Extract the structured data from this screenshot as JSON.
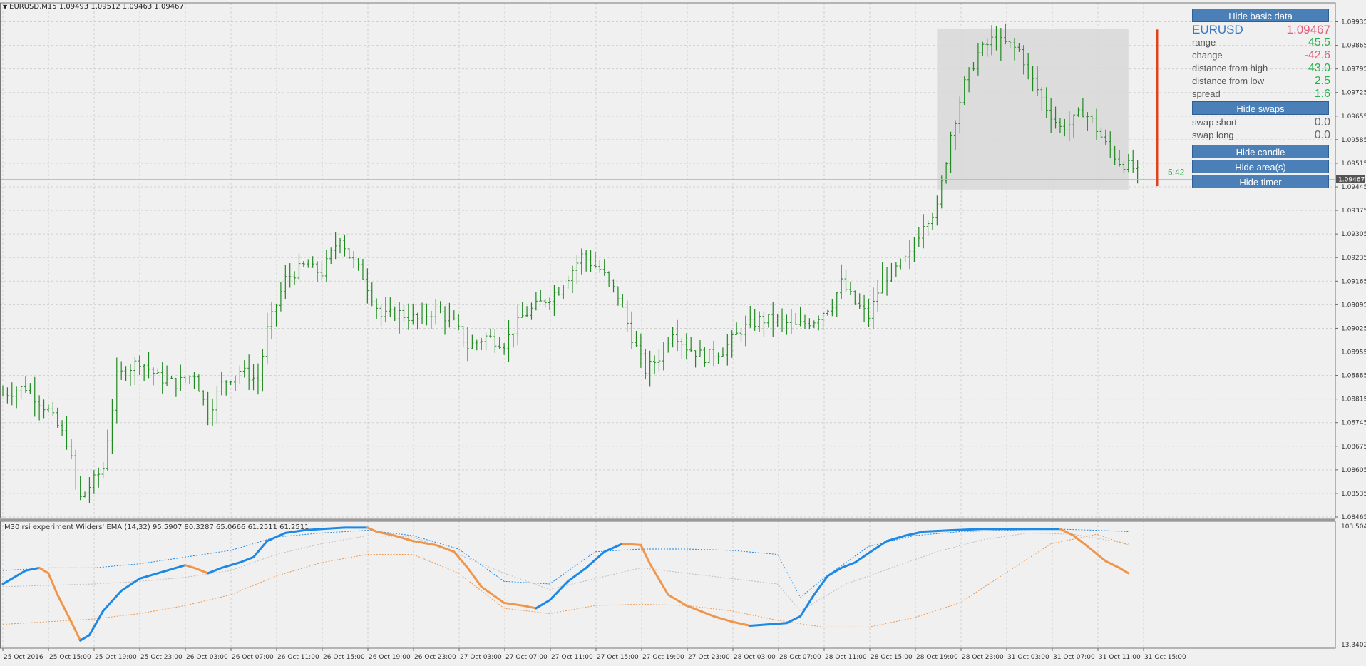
{
  "header": {
    "symbol_line": "EURUSD,M15  1.09493 1.09512 1.09463 1.09467"
  },
  "oscillator": {
    "label": "M30 rsi experiment Wilders' EMA (14,32) 95.5907 80.3287 65.0666 61.2511 61.2511",
    "axis_top": "103.5046",
    "axis_bottom": "13.3402"
  },
  "timer": "5:42",
  "current_price": "1.09467",
  "panel": {
    "hide_basic": "Hide basic data",
    "symbol": "EURUSD",
    "symbol_price": "1.09467",
    "rows": [
      {
        "label": "range",
        "value": "45.5",
        "color": "green"
      },
      {
        "label": "change",
        "value": "-42.6",
        "color": "red"
      },
      {
        "label": "distance from high",
        "value": "43.0",
        "color": "green"
      },
      {
        "label": "distance from low",
        "value": "2.5",
        "color": "green"
      },
      {
        "label": "spread",
        "value": "1.6",
        "color": "green"
      }
    ],
    "hide_swaps": "Hide swaps",
    "swap_rows": [
      {
        "label": "swap short",
        "value": "0.0"
      },
      {
        "label": "swap long",
        "value": "0.0"
      }
    ],
    "hide_candle": "Hide candle",
    "hide_areas": "Hide area(s)",
    "hide_timer": "Hide timer"
  },
  "colors": {
    "bars": "#1f8a1f",
    "rsi_up": "#1e88e5",
    "rsi_down": "#f0964a",
    "candle": "#e0421a",
    "area": "#d8d8d8",
    "grid": "#cfcfcf"
  },
  "chart_data": [
    {
      "type": "ohlc",
      "price_ticks": [
        "1.09935",
        "1.09865",
        "1.09795",
        "1.09725",
        "1.09655",
        "1.09585",
        "1.09515",
        "1.09445",
        "1.09375",
        "1.09305",
        "1.09235",
        "1.09165",
        "1.09095",
        "1.09025",
        "1.08955",
        "1.08885",
        "1.08815",
        "1.08745",
        "1.08675",
        "1.08605",
        "1.08535",
        "1.08465"
      ],
      "ylim": [
        1.08465,
        1.0997
      ],
      "time_labels": [
        "25 Oct 2016",
        "25 Oct 15:00",
        "25 Oct 19:00",
        "25 Oct 23:00",
        "26 Oct 03:00",
        "26 Oct 07:00",
        "26 Oct 11:00",
        "26 Oct 15:00",
        "26 Oct 19:00",
        "26 Oct 23:00",
        "27 Oct 03:00",
        "27 Oct 07:00",
        "27 Oct 11:00",
        "27 Oct 15:00",
        "27 Oct 19:00",
        "27 Oct 23:00",
        "28 Oct 03:00",
        "28 Oct 07:00",
        "28 Oct 11:00",
        "28 Oct 15:00",
        "28 Oct 19:00",
        "28 Oct 23:00",
        "31 Oct 03:00",
        "31 Oct 07:00",
        "31 Oct 11:00",
        "31 Oct 15:00"
      ],
      "close_path": [
        [
          0,
          1.0883
        ],
        [
          5,
          1.0885
        ],
        [
          10,
          1.0878
        ],
        [
          14,
          1.0869
        ],
        [
          17,
          1.0852
        ],
        [
          22,
          1.0861
        ],
        [
          25,
          1.0888
        ],
        [
          30,
          1.0893
        ],
        [
          34,
          1.0888
        ],
        [
          38,
          1.0886
        ],
        [
          42,
          1.0889
        ],
        [
          45,
          1.0877
        ],
        [
          48,
          1.0886
        ],
        [
          52,
          1.089
        ],
        [
          56,
          1.0887
        ],
        [
          58,
          1.0902
        ],
        [
          62,
          1.0917
        ],
        [
          66,
          1.0921
        ],
        [
          70,
          1.0919
        ],
        [
          74,
          1.093
        ],
        [
          76,
          1.0924
        ],
        [
          79,
          1.0918
        ],
        [
          83,
          1.0906
        ],
        [
          87,
          1.0907
        ],
        [
          91,
          1.0905
        ],
        [
          95,
          1.0908
        ],
        [
          99,
          1.0904
        ],
        [
          102,
          1.0897
        ],
        [
          106,
          1.09
        ],
        [
          110,
          1.0898
        ],
        [
          114,
          1.0906
        ],
        [
          118,
          1.091
        ],
        [
          122,
          1.0914
        ],
        [
          127,
          1.0924
        ],
        [
          131,
          1.092
        ],
        [
          135,
          1.0912
        ],
        [
          138,
          1.09
        ],
        [
          141,
          1.089
        ],
        [
          144,
          1.0894
        ],
        [
          147,
          1.0902
        ],
        [
          150,
          1.0897
        ],
        [
          154,
          1.0894
        ],
        [
          158,
          1.0896
        ],
        [
          162,
          1.0902
        ],
        [
          166,
          1.0905
        ],
        [
          170,
          1.0905
        ],
        [
          174,
          1.0903
        ],
        [
          178,
          1.0905
        ],
        [
          182,
          1.091
        ],
        [
          184,
          1.0916
        ],
        [
          187,
          1.091
        ],
        [
          190,
          1.0906
        ],
        [
          193,
          1.0917
        ],
        [
          196,
          1.092
        ],
        [
          199,
          1.0924
        ],
        [
          202,
          1.0934
        ],
        [
          205,
          1.0938
        ],
        [
          208,
          1.096
        ],
        [
          211,
          1.0975
        ],
        [
          214,
          1.0984
        ],
        [
          217,
          1.0988
        ],
        [
          220,
          1.0987
        ],
        [
          223,
          1.0985
        ],
        [
          226,
          1.0976
        ],
        [
          229,
          1.0968
        ],
        [
          232,
          1.0962
        ],
        [
          234,
          1.0963
        ],
        [
          237,
          1.0967
        ],
        [
          239,
          1.0964
        ],
        [
          242,
          1.0957
        ],
        [
          245,
          1.0952
        ],
        [
          248,
          1.095
        ],
        [
          250,
          1.0947
        ]
      ],
      "total_bars": 250,
      "last_price": 1.09467
    },
    {
      "type": "line",
      "name": "M30 rsi experiment Wilders' EMA (14,32)",
      "ylim": [
        13.3402,
        103.5046
      ],
      "series": [
        {
          "role": "rsi",
          "values": [
            [
              0,
              60
            ],
            [
              5,
              70
            ],
            [
              8,
              72
            ],
            [
              10,
              68
            ],
            [
              12,
              52
            ],
            [
              15,
              32
            ],
            [
              17,
              18
            ],
            [
              19,
              22
            ],
            [
              22,
              40
            ],
            [
              26,
              55
            ],
            [
              30,
              64
            ],
            [
              36,
              70
            ],
            [
              40,
              74
            ],
            [
              42,
              72
            ],
            [
              45,
              68
            ],
            [
              48,
              72
            ],
            [
              52,
              76
            ],
            [
              55,
              80
            ],
            [
              58,
              92
            ],
            [
              62,
              98
            ],
            [
              66,
              100
            ],
            [
              70,
              101
            ],
            [
              75,
              102
            ],
            [
              80,
              102
            ],
            [
              82,
              99
            ],
            [
              86,
              96
            ],
            [
              90,
              92
            ],
            [
              95,
              89
            ],
            [
              99,
              84
            ],
            [
              102,
              72
            ],
            [
              105,
              58
            ],
            [
              110,
              46
            ],
            [
              114,
              44
            ],
            [
              117,
              42
            ],
            [
              120,
              48
            ],
            [
              124,
              62
            ],
            [
              128,
              72
            ],
            [
              132,
              84
            ],
            [
              136,
              90
            ],
            [
              140,
              89
            ],
            [
              142,
              75
            ],
            [
              146,
              52
            ],
            [
              150,
              44
            ],
            [
              156,
              36
            ],
            [
              160,
              32
            ],
            [
              164,
              29
            ],
            [
              168,
              30
            ],
            [
              172,
              31
            ],
            [
              175,
              36
            ],
            [
              178,
              52
            ],
            [
              181,
              66
            ],
            [
              184,
              72
            ],
            [
              187,
              76
            ],
            [
              190,
              83
            ],
            [
              194,
              92
            ],
            [
              198,
              96
            ],
            [
              202,
              99
            ],
            [
              208,
              100
            ],
            [
              215,
              101
            ],
            [
              222,
              101
            ],
            [
              228,
              101
            ],
            [
              232,
              101
            ],
            [
              235,
              96
            ],
            [
              238,
              88
            ],
            [
              242,
              77
            ],
            [
              245,
              72
            ],
            [
              247,
              68
            ]
          ]
        },
        {
          "role": "signal",
          "values": [
            [
              0,
              70
            ],
            [
              10,
              72
            ],
            [
              20,
              72
            ],
            [
              30,
              75
            ],
            [
              40,
              80
            ],
            [
              50,
              85
            ],
            [
              60,
              95
            ],
            [
              70,
              98
            ],
            [
              80,
              100
            ],
            [
              90,
              96
            ],
            [
              100,
              86
            ],
            [
              110,
              62
            ],
            [
              120,
              60
            ],
            [
              130,
              84
            ],
            [
              140,
              86
            ],
            [
              150,
              86
            ],
            [
              160,
              85
            ],
            [
              170,
              82
            ],
            [
              175,
              50
            ],
            [
              180,
              64
            ],
            [
              190,
              88
            ],
            [
              200,
              96
            ],
            [
              210,
              99
            ],
            [
              220,
              100
            ],
            [
              230,
              101
            ],
            [
              240,
              100
            ],
            [
              247,
              99
            ]
          ]
        },
        {
          "role": "upper",
          "values": [
            [
              0,
              58
            ],
            [
              10,
              59
            ],
            [
              20,
              60
            ],
            [
              30,
              62
            ],
            [
              40,
              65
            ],
            [
              50,
              70
            ],
            [
              60,
              82
            ],
            [
              70,
              90
            ],
            [
              80,
              96
            ],
            [
              90,
              95
            ],
            [
              100,
              82
            ],
            [
              110,
              68
            ],
            [
              120,
              56
            ],
            [
              130,
              64
            ],
            [
              140,
              72
            ],
            [
              150,
              68
            ],
            [
              160,
              64
            ],
            [
              170,
              60
            ],
            [
              175,
              40
            ],
            [
              185,
              60
            ],
            [
              195,
              72
            ],
            [
              205,
              84
            ],
            [
              215,
              93
            ],
            [
              225,
              98
            ],
            [
              235,
              97
            ],
            [
              247,
              90
            ]
          ]
        },
        {
          "role": "lower",
          "values": [
            [
              0,
              30
            ],
            [
              10,
              32
            ],
            [
              20,
              34
            ],
            [
              30,
              38
            ],
            [
              40,
              44
            ],
            [
              50,
              52
            ],
            [
              60,
              66
            ],
            [
              70,
              76
            ],
            [
              80,
              82
            ],
            [
              90,
              82
            ],
            [
              100,
              68
            ],
            [
              110,
              42
            ],
            [
              120,
              38
            ],
            [
              130,
              44
            ],
            [
              140,
              45
            ],
            [
              150,
              44
            ],
            [
              160,
              40
            ],
            [
              170,
              33
            ],
            [
              180,
              28
            ],
            [
              190,
              28
            ],
            [
              200,
              35
            ],
            [
              210,
              46
            ],
            [
              220,
              68
            ],
            [
              230,
              90
            ],
            [
              240,
              97
            ],
            [
              247,
              89
            ]
          ]
        }
      ]
    }
  ]
}
